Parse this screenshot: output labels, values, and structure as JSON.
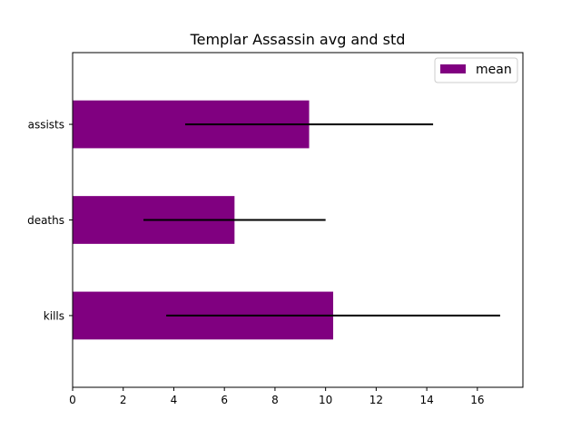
{
  "chart_data": {
    "type": "bar",
    "orientation": "horizontal",
    "title": "Templar Assassin avg and std",
    "xlabel": "",
    "ylabel": "",
    "categories": [
      "kills",
      "deaths",
      "assists"
    ],
    "series": [
      {
        "name": "mean",
        "values": [
          10.3,
          6.4,
          9.35
        ],
        "error": [
          6.6,
          3.6,
          4.9
        ],
        "color": "#800080"
      }
    ],
    "xlim": [
      0,
      17.8
    ],
    "xticks": [
      0,
      2,
      4,
      6,
      8,
      10,
      12,
      14,
      16
    ],
    "grid": false,
    "legend": {
      "placement": "top-right",
      "entries": [
        "mean"
      ]
    },
    "error_bar_color": "#000000"
  }
}
